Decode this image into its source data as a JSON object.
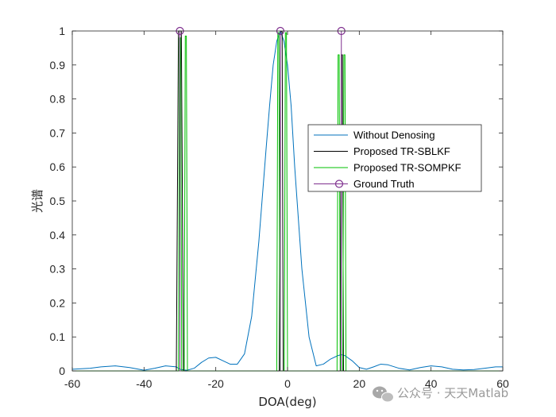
{
  "chart_data": {
    "type": "line",
    "title": "",
    "xlabel": "DOA(deg)",
    "ylabel": "光谱",
    "xlim": [
      -60,
      60
    ],
    "ylim": [
      0,
      1
    ],
    "xticks": [
      "-60",
      "-40",
      "-20",
      "0",
      "20",
      "40",
      "60"
    ],
    "yticks": [
      "0",
      "0.1",
      "0.2",
      "0.3",
      "0.4",
      "0.5",
      "0.6",
      "0.7",
      "0.8",
      "0.9",
      "1"
    ],
    "grid": false,
    "legend_position": "right",
    "series": [
      {
        "name": "Without Denosing",
        "color": "#0072BD",
        "x": [
          -60,
          -55,
          -52,
          -48,
          -44,
          -40,
          -37,
          -34,
          -31,
          -30,
          -29,
          -28,
          -26,
          -24,
          -22,
          -20,
          -18,
          -16,
          -14,
          -12,
          -10,
          -8,
          -6,
          -5,
          -4,
          -3,
          -2,
          -1,
          0,
          1,
          2,
          4,
          6,
          8,
          10,
          12,
          14,
          15,
          16,
          18,
          20,
          22,
          24,
          26,
          28,
          31,
          34,
          37,
          40,
          43,
          46,
          49,
          52,
          55,
          58,
          60
        ],
        "y": [
          0.005,
          0.008,
          0.012,
          0.015,
          0.01,
          0.002,
          0.008,
          0.015,
          0.012,
          0.005,
          0.003,
          0.002,
          0.008,
          0.025,
          0.038,
          0.04,
          0.03,
          0.02,
          0.02,
          0.05,
          0.16,
          0.38,
          0.65,
          0.78,
          0.9,
          0.97,
          1.0,
          0.97,
          0.9,
          0.78,
          0.6,
          0.3,
          0.1,
          0.015,
          0.02,
          0.035,
          0.045,
          0.048,
          0.045,
          0.03,
          0.01,
          0.005,
          0.012,
          0.02,
          0.018,
          0.008,
          0.003,
          0.01,
          0.015,
          0.012,
          0.005,
          0.003,
          0.004,
          0.008,
          0.012,
          0.012
        ]
      },
      {
        "name": "Proposed TR-SBLKF",
        "color": "#000000",
        "x": [
          -60,
          -31,
          -30.4,
          -29.6,
          -29,
          -2.3,
          -2,
          -1.5,
          -1.2,
          14.7,
          15,
          15.3,
          15.6,
          60
        ],
        "y": [
          0,
          0,
          1.0,
          1.0,
          0,
          0,
          0.998,
          0.998,
          0,
          0,
          0.93,
          0.93,
          0,
          0
        ]
      },
      {
        "name": "Proposed TR-SOMPKF",
        "color": "#00C000",
        "x": [
          -60,
          -30.4,
          -30.1,
          -29.8,
          -29.5,
          -28.8,
          -28.5,
          -28.2,
          -27.9,
          -3,
          -2.7,
          -2.4,
          -2.1,
          -0.9,
          -0.6,
          -0.3,
          0,
          13.8,
          14.1,
          14.4,
          14.7,
          15.4,
          15.7,
          16,
          16.3,
          60
        ],
        "y": [
          0,
          0,
          0.98,
          0.98,
          0,
          0,
          0.985,
          0.985,
          0,
          0,
          0.995,
          0.995,
          0,
          0,
          0.995,
          0.995,
          0,
          0,
          0.93,
          0.93,
          0,
          0,
          0.93,
          0.93,
          0,
          0
        ]
      },
      {
        "name": "Ground Truth",
        "color": "#7E2F8E",
        "stem": true,
        "x": [
          -30,
          -2,
          15
        ],
        "y": [
          1,
          1,
          1
        ]
      }
    ]
  },
  "watermark": {
    "icon": "wechat-icon",
    "text": "公众号 · 天天Matlab"
  }
}
